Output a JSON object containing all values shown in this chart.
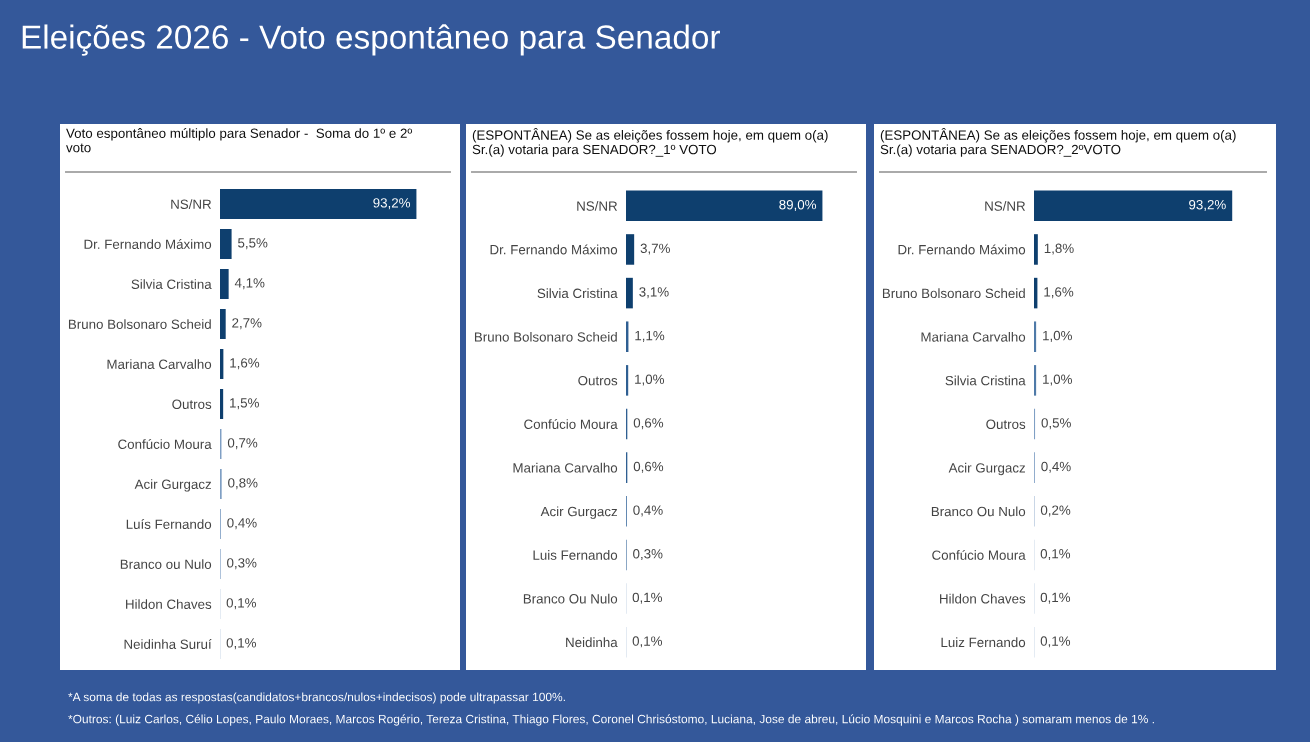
{
  "chart_data": [
    {
      "type": "bar",
      "orientation": "horizontal",
      "title": "Voto espontâneo múltiplo para Senador -  Soma do 1º e 2º voto",
      "categories": [
        "NS/NR",
        "Dr. Fernando Máximo",
        "Silvia Cristina",
        "Bruno Bolsonaro Scheid",
        "Mariana Carvalho",
        "Outros",
        "Confúcio Moura",
        "Acir Gurgacz",
        "Luís Fernando",
        "Branco ou Nulo",
        "Hildon Chaves",
        "Neidinha Suruí"
      ],
      "values": [
        93.2,
        5.5,
        4.1,
        2.7,
        1.6,
        1.5,
        0.7,
        0.8,
        0.4,
        0.3,
        0.1,
        0.1
      ],
      "value_labels": [
        "93,2%",
        "5,5%",
        "4,1%",
        "2,7%",
        "1,6%",
        "1,5%",
        "0,7%",
        "0,8%",
        "0,4%",
        "0,3%",
        "0,1%",
        "0,1%"
      ],
      "colors": [
        "#0e3f6e",
        "#0e3f6e",
        "#0e3f6e",
        "#0e3f6e",
        "#0e3f6e",
        "#0e3f6e",
        "#7f9fc4",
        "#7f9fc4",
        "#7f9fc4",
        "#7f9fc4",
        "#7f9fc4",
        "#7f9fc4"
      ]
    },
    {
      "type": "bar",
      "orientation": "horizontal",
      "title": "(ESPONTÂNEA) Se as eleições fossem hoje, em quem o(a) Sr.(a) votaria para SENADOR?_1º VOTO",
      "categories": [
        "NS/NR",
        "Dr. Fernando Máximo",
        "Silvia Cristina",
        "Bruno Bolsonaro Scheid",
        "Outros",
        "Confúcio Moura",
        "Mariana Carvalho",
        "Acir Gurgacz",
        "Luis Fernando",
        "Branco Ou Nulo",
        "Neidinha"
      ],
      "values": [
        89.0,
        3.7,
        3.1,
        1.1,
        1.0,
        0.6,
        0.6,
        0.4,
        0.3,
        0.1,
        0.1
      ],
      "value_labels": [
        "89,0%",
        "3,7%",
        "3,1%",
        "1,1%",
        "1,0%",
        "0,6%",
        "0,6%",
        "0,4%",
        "0,3%",
        "0,1%",
        "0,1%"
      ],
      "colors": [
        "#0e3f6e",
        "#0e3f6e",
        "#0e3f6e",
        "#2f5f92",
        "#2f5f92",
        "#2f5f92",
        "#2f5f92",
        "#4f7aa8",
        "#4f7aa8",
        "#7f9fc4",
        "#7f9fc4"
      ]
    },
    {
      "type": "bar",
      "orientation": "horizontal",
      "title": "(ESPONTÂNEA) Se as eleições fossem hoje, em quem o(a) Sr.(a) votaria para SENADOR?_2ºVOTO",
      "categories": [
        "NS/NR",
        "Dr. Fernando Máximo",
        "Bruno Bolsonaro Scheid",
        "Mariana Carvalho",
        "Silvia Cristina",
        "Outros",
        "Acir Gurgacz",
        "Branco Ou Nulo",
        "Confúcio Moura",
        "Hildon Chaves",
        "Luiz Fernando"
      ],
      "values": [
        93.2,
        1.8,
        1.6,
        1.0,
        1.0,
        0.5,
        0.4,
        0.2,
        0.1,
        0.1,
        0.1
      ],
      "value_labels": [
        "93,2%",
        "1,8%",
        "1,6%",
        "1,0%",
        "1,0%",
        "0,5%",
        "0,4%",
        "0,2%",
        "0,1%",
        "0,1%",
        "0,1%"
      ],
      "colors": [
        "#0e3f6e",
        "#0e3f6e",
        "#0e3f6e",
        "#4f7aa8",
        "#4f7aa8",
        "#7f9fc4",
        "#7f9fc4",
        "#7f9fc4",
        "#7f9fc4",
        "#7f9fc4",
        "#7f9fc4"
      ]
    },
    {
      "type": "other",
      "title": "Eleições 2026 - Voto espontâneo para Senador",
      "annotations": [
        "*A soma de todas as respostas(candidatos+brancos/nulos+indecisos) pode ultrapassar 100%.",
        "*Outros: (Luiz Carlos, Célio Lopes, Paulo Moraes, Marcos Rogério, Tereza Cristina, Thiago Flores, Coronel Chrisóstomo, Luciana, Jose de abreu, Lúcio Mosquini e Marcos Rocha ) somaram menos de 1% ."
      ]
    }
  ]
}
